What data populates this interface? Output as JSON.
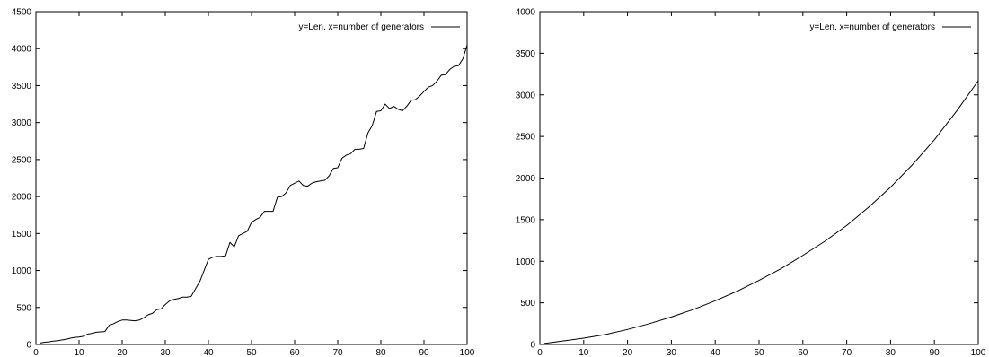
{
  "chart_data": [
    {
      "type": "line",
      "title": "",
      "xlabel": "",
      "ylabel": "",
      "xlim": [
        0,
        100
      ],
      "ylim": [
        0,
        4500
      ],
      "xticks": [
        0,
        10,
        20,
        30,
        40,
        50,
        60,
        70,
        80,
        90,
        100
      ],
      "yticks": [
        0,
        500,
        1000,
        1500,
        2000,
        2500,
        3000,
        3500,
        4000,
        4500
      ],
      "grid": false,
      "legend_position": "top-right",
      "series": [
        {
          "name": "y=Len, x=number of generators",
          "color": "#000000",
          "x": [
            1,
            2,
            3,
            4,
            5,
            6,
            7,
            8,
            9,
            10,
            11,
            12,
            13,
            14,
            15,
            16,
            17,
            18,
            19,
            20,
            21,
            22,
            23,
            24,
            25,
            26,
            27,
            28,
            29,
            30,
            31,
            32,
            33,
            34,
            35,
            36,
            37,
            38,
            39,
            40,
            41,
            42,
            43,
            44,
            45,
            46,
            47,
            48,
            49,
            50,
            51,
            52,
            53,
            54,
            55,
            56,
            57,
            58,
            59,
            60,
            61,
            62,
            63,
            64,
            65,
            66,
            67,
            68,
            69,
            70,
            71,
            72,
            73,
            74,
            75,
            76,
            77,
            78,
            79,
            80,
            81,
            82,
            83,
            84,
            85,
            86,
            87,
            88,
            89,
            90,
            91,
            92,
            93,
            94,
            95,
            96,
            97,
            98,
            99,
            100
          ],
          "y": [
            20,
            30,
            35,
            45,
            50,
            60,
            70,
            85,
            95,
            100,
            110,
            140,
            150,
            165,
            170,
            175,
            260,
            280,
            310,
            330,
            330,
            325,
            320,
            330,
            360,
            400,
            420,
            470,
            480,
            540,
            590,
            610,
            620,
            640,
            640,
            650,
            750,
            850,
            1000,
            1150,
            1180,
            1190,
            1190,
            1200,
            1380,
            1320,
            1470,
            1500,
            1530,
            1650,
            1690,
            1720,
            1800,
            1800,
            1800,
            1990,
            2000,
            2050,
            2150,
            2180,
            2210,
            2150,
            2140,
            2180,
            2200,
            2210,
            2220,
            2280,
            2380,
            2390,
            2520,
            2560,
            2580,
            2640,
            2640,
            2650,
            2860,
            2960,
            3150,
            3160,
            3250,
            3190,
            3220,
            3180,
            3160,
            3220,
            3300,
            3310,
            3360,
            3420,
            3480,
            3500,
            3560,
            3640,
            3650,
            3720,
            3760,
            3770,
            3860,
            4050
          ]
        }
      ]
    },
    {
      "type": "line",
      "title": "",
      "xlabel": "",
      "ylabel": "",
      "xlim": [
        0,
        100
      ],
      "ylim": [
        0,
        4000
      ],
      "xticks": [
        0,
        10,
        20,
        30,
        40,
        50,
        60,
        70,
        80,
        90,
        100
      ],
      "yticks": [
        0,
        500,
        1000,
        1500,
        2000,
        2500,
        3000,
        3500,
        4000
      ],
      "grid": false,
      "legend_position": "top-right",
      "series": [
        {
          "name": "y=Len, x=number of generators",
          "color": "#000000",
          "x": [
            1,
            5,
            10,
            15,
            20,
            25,
            30,
            35,
            40,
            45,
            50,
            55,
            60,
            65,
            70,
            75,
            80,
            85,
            90,
            95,
            100
          ],
          "y": [
            12,
            40,
            75,
            120,
            180,
            250,
            330,
            420,
            525,
            640,
            770,
            910,
            1070,
            1240,
            1430,
            1650,
            1890,
            2160,
            2460,
            2800,
            3170
          ]
        }
      ]
    }
  ]
}
